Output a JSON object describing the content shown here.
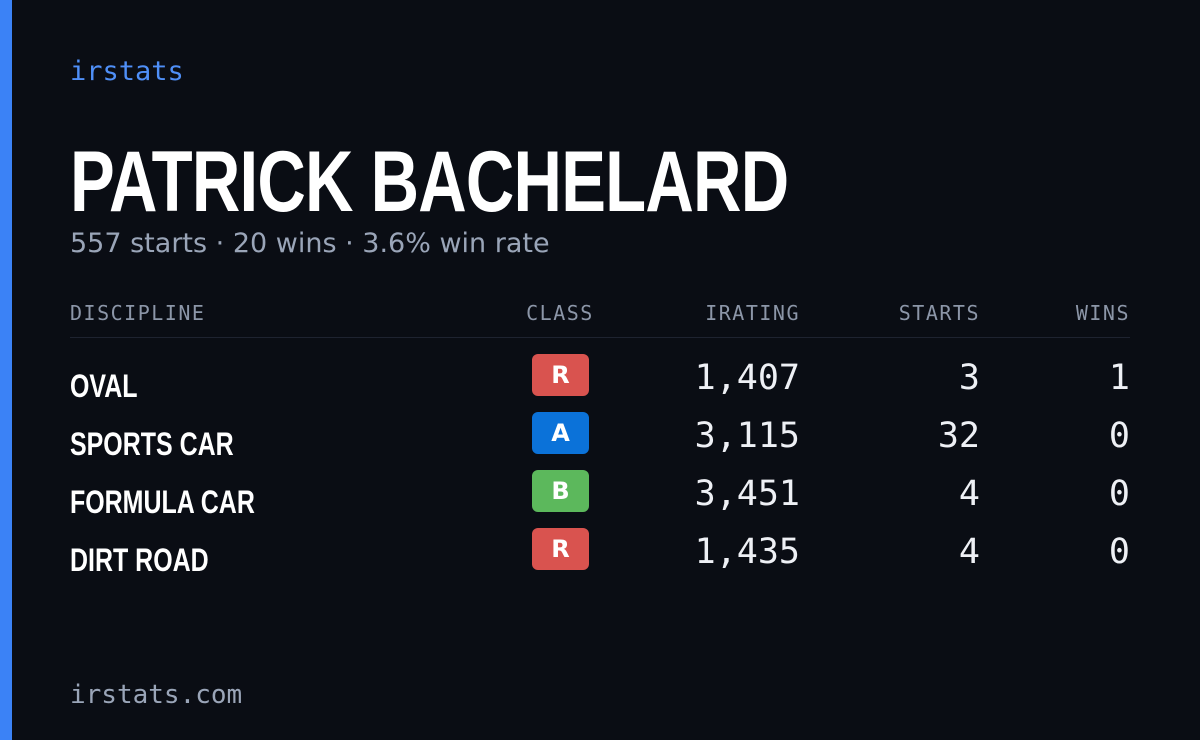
{
  "brand": "irstats",
  "driver": {
    "name": "PATRICK BACHELARD",
    "summary": "557 starts · 20 wins · 3.6% win rate"
  },
  "table": {
    "headers": [
      "DISCIPLINE",
      "CLASS",
      "IRATING",
      "STARTS",
      "WINS"
    ],
    "rows": [
      {
        "discipline": "OVAL",
        "class": "R",
        "class_color": "#d9534f",
        "irating": "1,407",
        "starts": "3",
        "wins": "1"
      },
      {
        "discipline": "SPORTS CAR",
        "class": "A",
        "class_color": "#0b72d9",
        "irating": "3,115",
        "starts": "32",
        "wins": "0"
      },
      {
        "discipline": "FORMULA CAR",
        "class": "B",
        "class_color": "#5cb85c",
        "irating": "3,451",
        "starts": "4",
        "wins": "0"
      },
      {
        "discipline": "DIRT ROAD",
        "class": "R",
        "class_color": "#d9534f",
        "irating": "1,435",
        "starts": "4",
        "wins": "0"
      }
    ]
  },
  "footer": "irstats.com"
}
